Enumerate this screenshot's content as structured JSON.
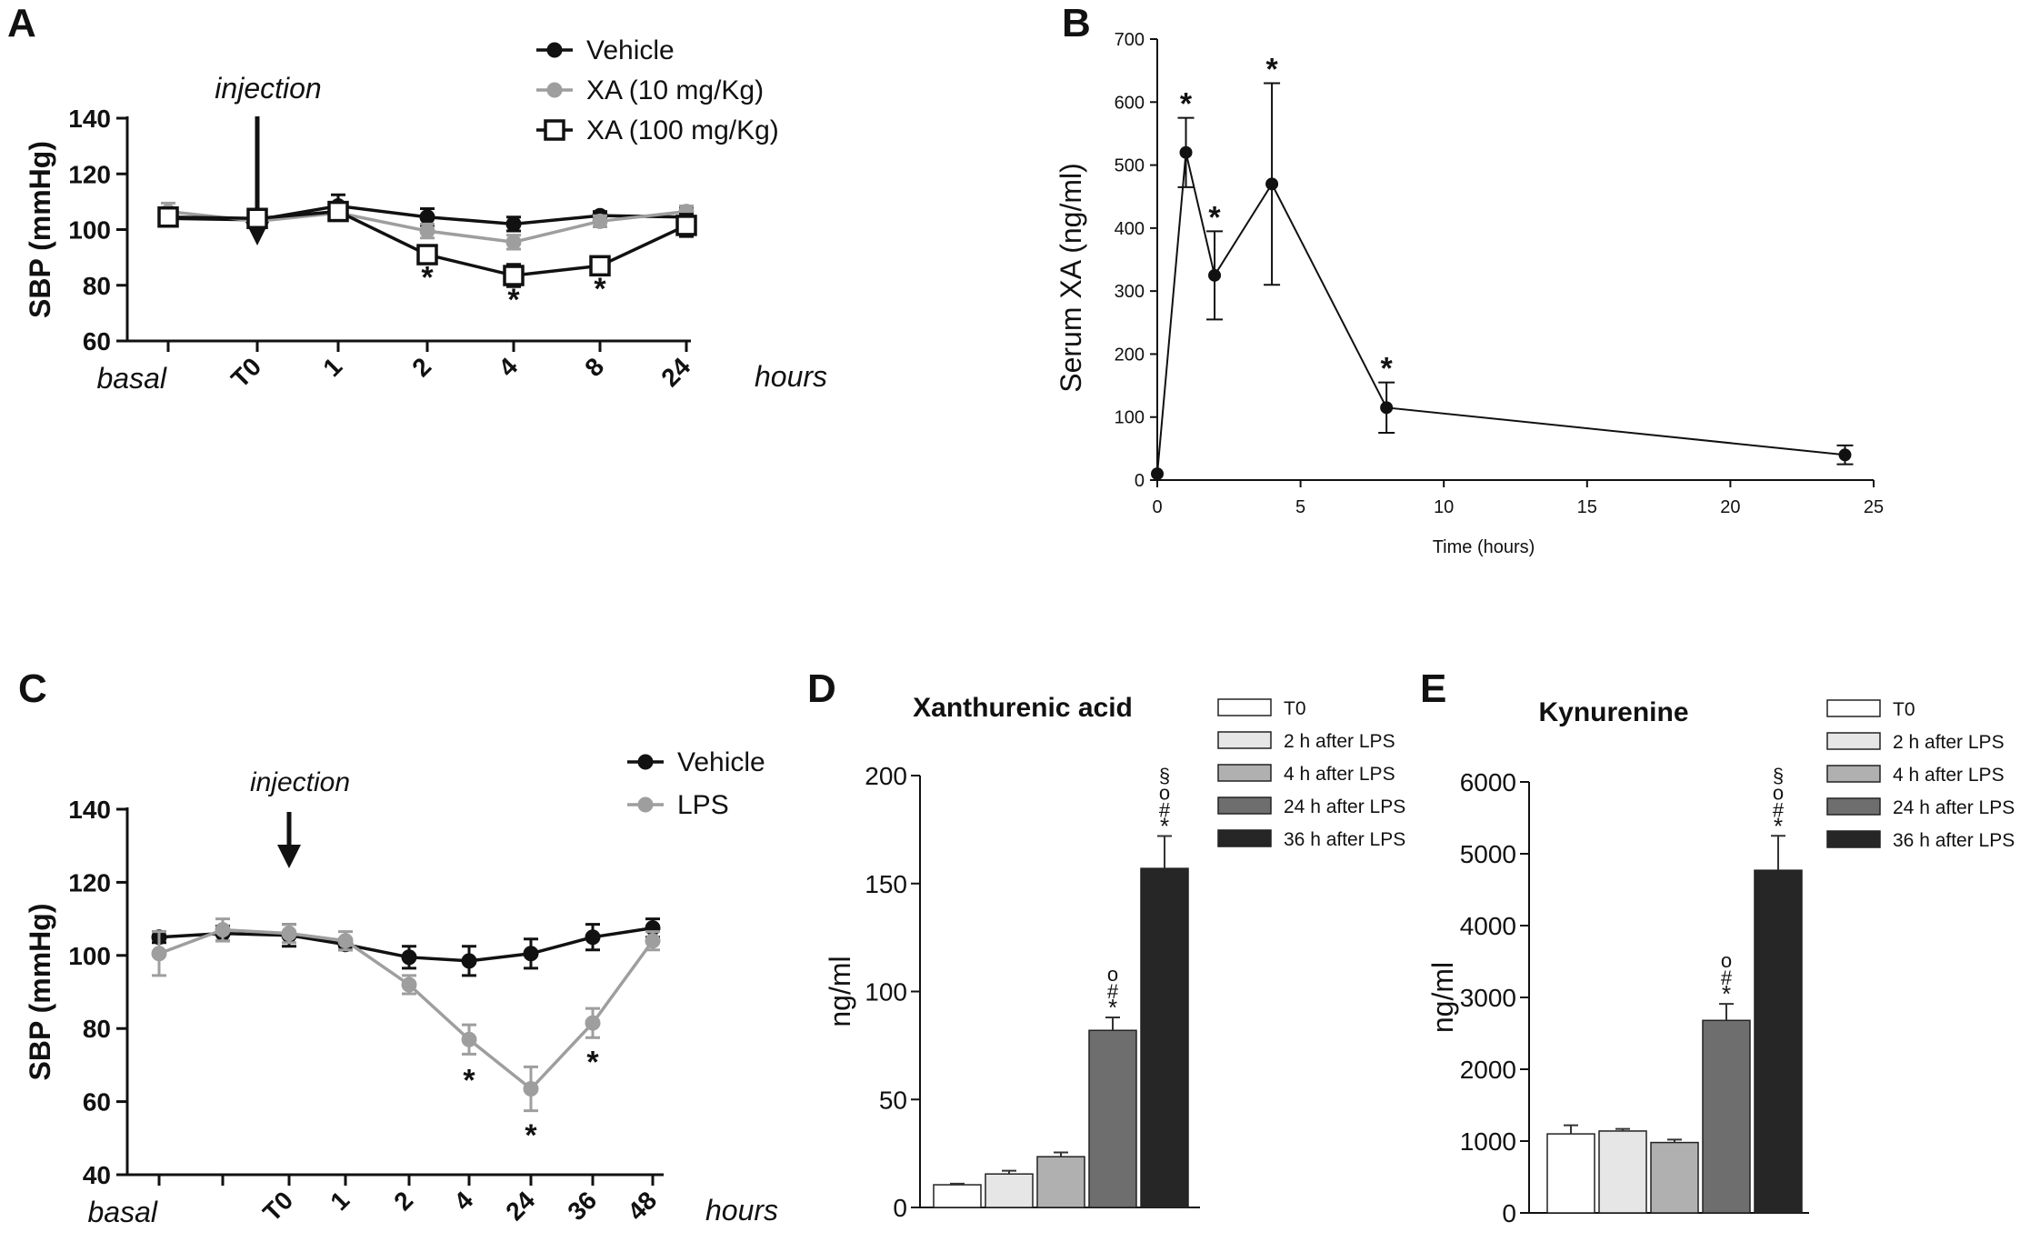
{
  "colors": {
    "black": "#111111",
    "gray": "#9e9e9e"
  },
  "panels": {
    "A": {
      "letter": "A"
    },
    "B": {
      "letter": "B"
    },
    "C": {
      "letter": "C"
    },
    "D": {
      "letter": "D"
    },
    "E": {
      "letter": "E"
    }
  },
  "chart_data": [
    {
      "id": "A",
      "type": "line",
      "ylabel": "SBP (mmHg)",
      "xlabel": "hours",
      "annotation": "injection",
      "ylim": [
        60,
        140
      ],
      "yticks": [
        60,
        80,
        100,
        120,
        140
      ],
      "categories": [
        "basal",
        "T0",
        "1",
        "2",
        "4",
        "8",
        "24"
      ],
      "italic_categories": [
        "basal"
      ],
      "series": [
        {
          "name": "Vehicle",
          "color": "#111111",
          "marker": "filled-circle",
          "values": [
            104,
            103.5,
            108.5,
            104.5,
            102,
            105,
            104.5
          ],
          "errors": [
            2,
            2,
            4,
            3,
            2.5,
            1.5,
            3
          ]
        },
        {
          "name": "XA (10 mg/Kg)",
          "color": "#9e9e9e",
          "marker": "filled-circle-gray",
          "values": [
            106.5,
            103,
            106,
            99.5,
            95.5,
            103,
            106.5
          ],
          "errors": [
            3,
            2,
            2,
            2.5,
            2.5,
            2,
            2
          ]
        },
        {
          "name": "XA (100 mg/Kg)",
          "color": "#111111",
          "marker": "open-square",
          "values": [
            104.5,
            104,
            106.5,
            91,
            83.5,
            87,
            101.5
          ],
          "errors": [
            2.5,
            2.5,
            2,
            3,
            4,
            3,
            4
          ]
        }
      ],
      "significance": [
        {
          "category": "2",
          "y": 83,
          "label": "*"
        },
        {
          "category": "4",
          "y": 75,
          "label": "*"
        },
        {
          "category": "8",
          "y": 79,
          "label": "*"
        }
      ]
    },
    {
      "id": "B",
      "type": "line",
      "ylabel": "Serum XA (ng/ml)",
      "xlabel": "Time (hours)",
      "xlim": [
        0,
        25
      ],
      "ylim": [
        0,
        700
      ],
      "xticks": [
        0,
        5,
        10,
        15,
        20,
        25
      ],
      "yticks": [
        0,
        100,
        200,
        300,
        400,
        500,
        600,
        700
      ],
      "series": [
        {
          "name": "Serum XA",
          "x": [
            0,
            1,
            2,
            4,
            8,
            24
          ],
          "values": [
            10,
            520,
            325,
            470,
            115,
            40
          ],
          "errors": [
            0,
            55,
            70,
            160,
            40,
            15
          ]
        }
      ],
      "significance": [
        {
          "x": 1,
          "label": "*"
        },
        {
          "x": 2,
          "label": "*"
        },
        {
          "x": 4,
          "label": "*"
        },
        {
          "x": 8,
          "label": "*"
        }
      ]
    },
    {
      "id": "C",
      "type": "line",
      "ylabel": "SBP (mmHg)",
      "xlabel": "hours",
      "annotation": "injection",
      "ylim": [
        40,
        140
      ],
      "yticks": [
        40,
        60,
        80,
        100,
        120,
        140
      ],
      "categories": [
        "basal",
        "",
        "T0",
        "1",
        "2",
        "4",
        "24",
        "36",
        "48"
      ],
      "italic_categories": [
        "basal"
      ],
      "series": [
        {
          "name": "Vehicle",
          "color": "#111111",
          "marker": "filled-circle",
          "values": [
            105,
            106,
            105.5,
            103,
            99.5,
            98.5,
            100.5,
            105,
            107.5
          ],
          "errors": [
            1.5,
            2,
            3,
            1.5,
            3,
            4,
            4,
            3.5,
            2.5
          ]
        },
        {
          "name": "LPS",
          "color": "#9e9e9e",
          "marker": "filled-circle-gray",
          "values": [
            100.5,
            107,
            106,
            104,
            92,
            77,
            63.5,
            81.5,
            104
          ],
          "errors": [
            6,
            3,
            2.5,
            2.5,
            2.5,
            4,
            6,
            4,
            2.5
          ]
        }
      ],
      "significance": [
        {
          "category": "4",
          "y": 66,
          "label": "*"
        },
        {
          "category": "24",
          "y": 51,
          "label": "*"
        },
        {
          "category": "36",
          "y": 71,
          "label": "*"
        }
      ]
    },
    {
      "id": "D",
      "type": "bar",
      "title": "Xanthurenic acid",
      "ylabel": "ng/ml",
      "ylim": [
        0,
        200
      ],
      "yticks": [
        0,
        50,
        100,
        150,
        200
      ],
      "categories": [
        "T0",
        "2 h after LPS",
        "4 h after LPS",
        "24 h after LPS",
        "36 h after LPS"
      ],
      "colors": [
        "#ffffff",
        "#e6e6e6",
        "#b0b0b0",
        "#6e6e6e",
        "#262626"
      ],
      "values": [
        10.5,
        15.5,
        23.5,
        82,
        157
      ],
      "errors": [
        0.5,
        1.5,
        2,
        6,
        15
      ],
      "significance": [
        {
          "category": "24 h after LPS",
          "labels": [
            "*",
            "#",
            "o"
          ]
        },
        {
          "category": "36 h after LPS",
          "labels": [
            "*",
            "#",
            "o",
            "§"
          ]
        }
      ]
    },
    {
      "id": "E",
      "type": "bar",
      "title": "Kynurenine",
      "ylabel": "ng/ml",
      "ylim": [
        0,
        6000
      ],
      "yticks": [
        0,
        1000,
        2000,
        3000,
        4000,
        5000,
        6000
      ],
      "categories": [
        "T0",
        "2 h after LPS",
        "4 h after LPS",
        "24 h after LPS",
        "36 h after LPS"
      ],
      "colors": [
        "#ffffff",
        "#e6e6e6",
        "#b0b0b0",
        "#6e6e6e",
        "#262626"
      ],
      "values": [
        1100,
        1140,
        980,
        2680,
        4770
      ],
      "errors": [
        120,
        30,
        40,
        230,
        480
      ],
      "significance": [
        {
          "category": "24 h after LPS",
          "labels": [
            "*",
            "#",
            "o"
          ]
        },
        {
          "category": "36 h after LPS",
          "labels": [
            "*",
            "#",
            "o",
            "§"
          ]
        }
      ]
    }
  ]
}
